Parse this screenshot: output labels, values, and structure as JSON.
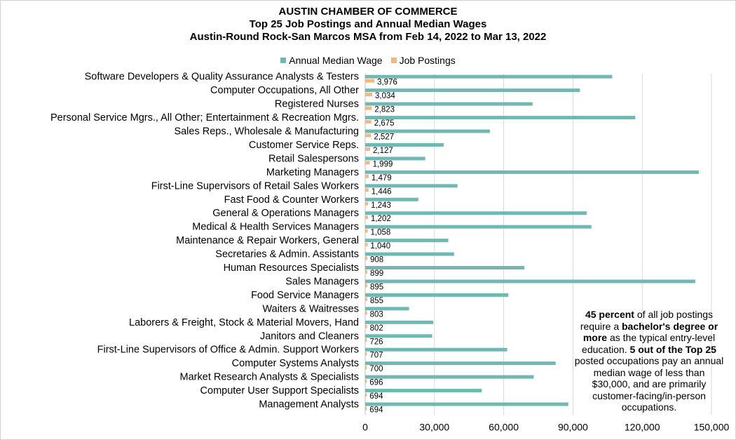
{
  "title_lines": [
    "AUSTIN CHAMBER OF COMMERCE",
    "Top 25 Job Postings and Annual Median Wages",
    "Austin-Round Rock-San Marcos MSA from Feb 14, 2022 to Mar 13, 2022"
  ],
  "colors": {
    "wage": "#70B8B2",
    "postings": "#F1B982",
    "grid": "#D9D9D9"
  },
  "note": {
    "p1": "45 percent",
    "p2": " of all job postings require a ",
    "p3": "bachelor's degree or more",
    "p4": " as the typical entry-level education. ",
    "p5": "5 out of the Top 25",
    "p6": " posted occupations pay an annual median wage of less than $30,000, and are primarily customer-facing/in-person occupations."
  },
  "chart_data": {
    "type": "bar",
    "orientation": "horizontal",
    "title": "AUSTIN CHAMBER OF COMMERCE Top 25 Job Postings and Annual Median Wages Austin-Round Rock-San Marcos MSA from Feb 14, 2022 to Mar 13, 2022",
    "legend_position": "top",
    "grid": true,
    "xlim": [
      0,
      150000
    ],
    "xticks": [
      "0",
      "30,000",
      "60,000",
      "90,000",
      "120,000",
      "150,000"
    ],
    "categories": [
      "Software Developers & Quality Assurance Analysts & Testers",
      "Computer Occupations, All Other",
      "Registered Nurses",
      "Personal Service Mgrs., All Other; Entertainment & Recreation Mgrs.",
      "Sales Reps., Wholesale & Manufacturing",
      "Customer Service Reps.",
      "Retail Salespersons",
      "Marketing Managers",
      "First-Line Supervisors of Retail Sales Workers",
      "Fast Food & Counter Workers",
      "General & Operations Managers",
      "Medical & Health Services Managers",
      "Maintenance & Repair Workers, General",
      "Secretaries & Admin. Assistants",
      "Human Resources Specialists",
      "Sales Managers",
      "Food Service Managers",
      "Waiters & Waitresses",
      "Laborers & Freight, Stock & Material Movers, Hand",
      "Janitors and Cleaners",
      "First-Line Supervisors of Office & Admin. Support Workers",
      "Computer Systems Analysts",
      "Market Research Analysts & Specialists",
      "Computer User Support Specialists",
      "Management Analysts"
    ],
    "series": [
      {
        "name": "Annual Median Wage",
        "values": [
          107000,
          93000,
          72500,
          117000,
          54000,
          34000,
          26000,
          144500,
          40000,
          23000,
          96000,
          98000,
          36000,
          38500,
          69000,
          143000,
          62000,
          19000,
          29500,
          29000,
          61500,
          82500,
          73000,
          50500,
          88000
        ]
      },
      {
        "name": "Job Postings",
        "values": [
          3976,
          3034,
          2823,
          2675,
          2527,
          2127,
          1999,
          1479,
          1446,
          1243,
          1202,
          1058,
          1040,
          908,
          899,
          895,
          855,
          803,
          802,
          726,
          707,
          700,
          696,
          694,
          694
        ],
        "labels": [
          "3,976",
          "3,034",
          "2,823",
          "2,675",
          "2,527",
          "2,127",
          "1,999",
          "1,479",
          "1,446",
          "1,243",
          "1,202",
          "1,058",
          "1,040",
          "908",
          "899",
          "895",
          "855",
          "803",
          "802",
          "726",
          "707",
          "700",
          "696",
          "694",
          "694"
        ]
      }
    ]
  }
}
